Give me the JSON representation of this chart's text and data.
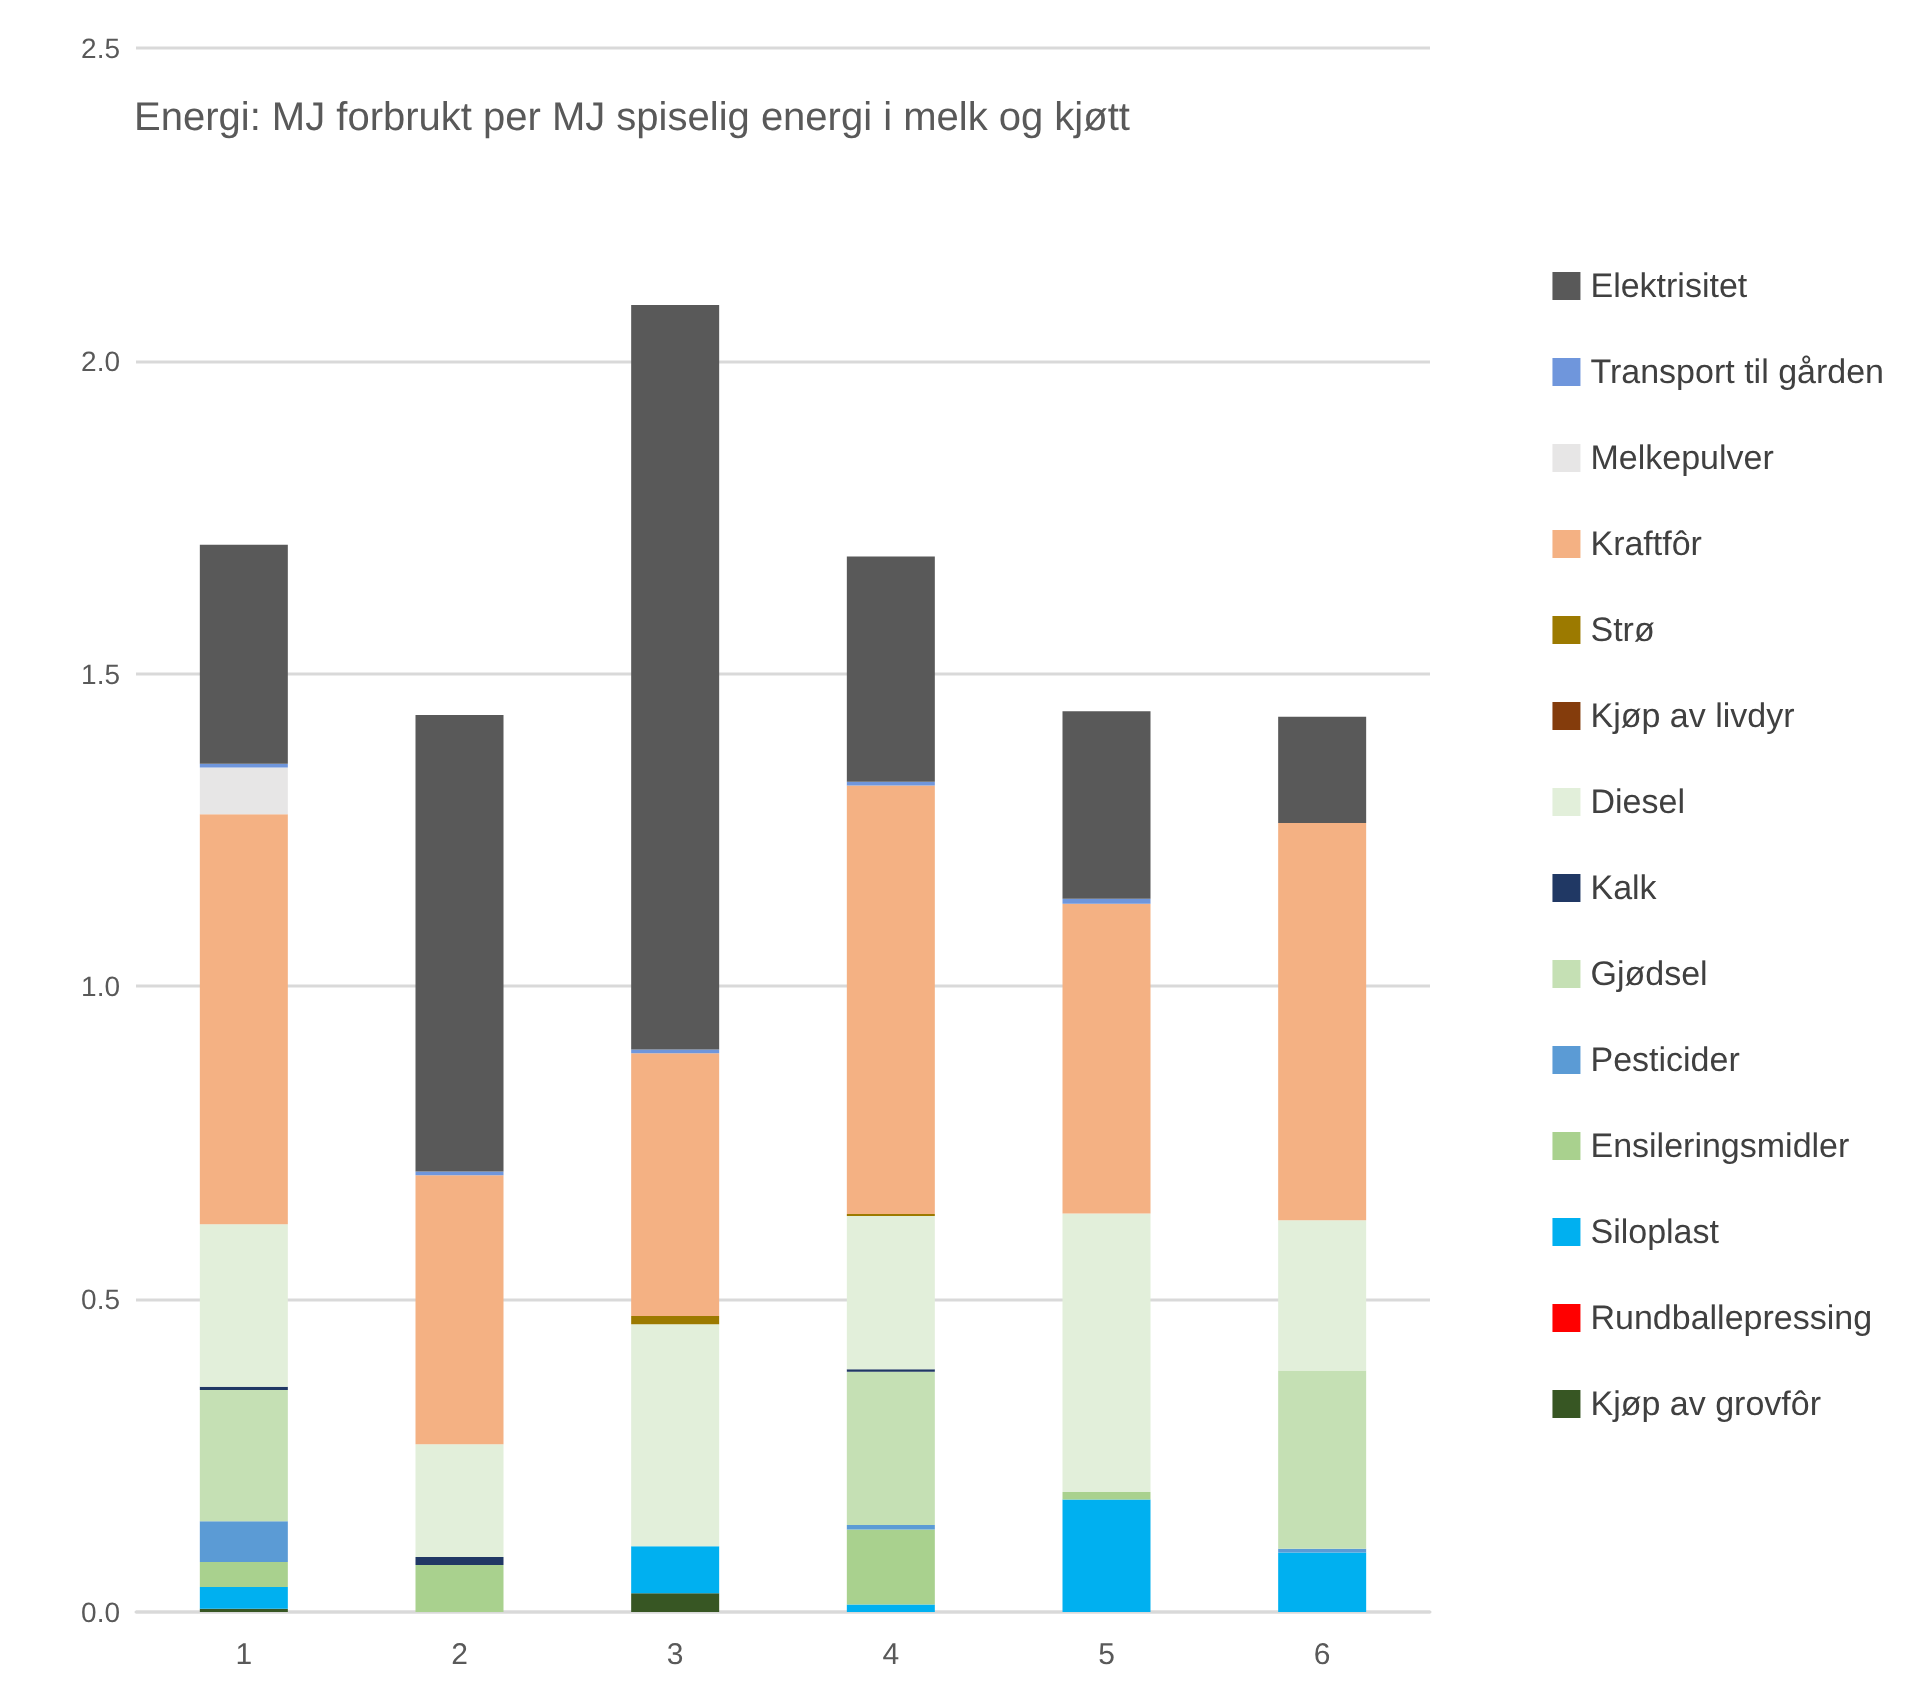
{
  "chart_data": {
    "type": "bar",
    "stacked": true,
    "title": "Energi: MJ forbrukt per MJ spiselig energi i melk og kjøtt",
    "categories": [
      "1",
      "2",
      "3",
      "4",
      "5",
      "6"
    ],
    "ylim": [
      0,
      2.5
    ],
    "yticks": [
      "0.0",
      0.5,
      "1.0",
      1.5,
      "2.0",
      2.5
    ],
    "grid": "y",
    "legend": "right",
    "series": [
      {
        "name": "Kjøp av grovfôr",
        "color": "#375623",
        "values": [
          0.005,
          null,
          0.03,
          null,
          null,
          null
        ]
      },
      {
        "name": "Rundballepressing",
        "color": "#ff0000",
        "values": [
          null,
          null,
          null,
          null,
          null,
          null
        ]
      },
      {
        "name": "Siloplast",
        "color": "#00b0f0",
        "values": [
          0.035,
          null,
          0.075,
          0.012,
          0.18,
          0.095
        ]
      },
      {
        "name": "Ensileringsmidler",
        "color": "#a9d18e",
        "values": [
          0.04,
          0.075,
          null,
          0.12,
          0.012,
          null
        ]
      },
      {
        "name": "Pesticider",
        "color": "#5b9bd5",
        "values": [
          0.065,
          null,
          null,
          0.007,
          null,
          0.006
        ]
      },
      {
        "name": "Gjødsel",
        "color": "#c5e0b4",
        "values": [
          0.21,
          null,
          null,
          0.245,
          null,
          0.285
        ]
      },
      {
        "name": "Kalk",
        "color": "#203864",
        "values": [
          0.005,
          0.013,
          null,
          0.004,
          null,
          null
        ]
      },
      {
        "name": "Diesel",
        "color": "#e2efda",
        "values": [
          0.26,
          0.18,
          0.355,
          0.245,
          0.445,
          0.24
        ]
      },
      {
        "name": "Kjøp av livdyr",
        "color": "#843c0c",
        "values": [
          null,
          null,
          null,
          null,
          null,
          null
        ]
      },
      {
        "name": "Strø",
        "color": "#9c7a00",
        "values": [
          null,
          null,
          0.013,
          0.003,
          null,
          null
        ]
      },
      {
        "name": "Kraftfôr",
        "color": "#f4b183",
        "values": [
          0.655,
          0.43,
          0.42,
          0.685,
          0.495,
          0.635
        ]
      },
      {
        "name": "Melkepulver",
        "color": "#e7e6e6",
        "values": [
          0.075,
          null,
          null,
          null,
          null,
          null
        ]
      },
      {
        "name": "Transport til gården",
        "color": "#6f96dc",
        "values": [
          0.006,
          0.006,
          0.006,
          0.006,
          0.008,
          null
        ]
      },
      {
        "name": "Elektrisitet",
        "color": "#595959",
        "values": [
          0.35,
          0.73,
          1.19,
          0.36,
          0.3,
          0.17
        ]
      }
    ]
  }
}
